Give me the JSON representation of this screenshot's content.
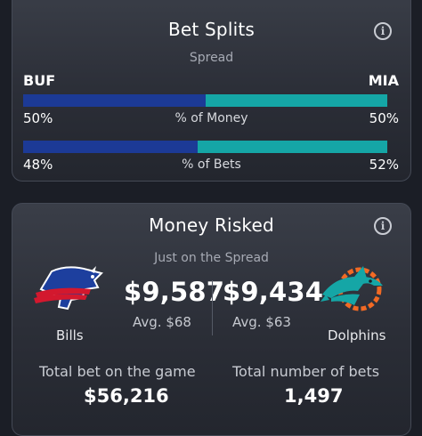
{
  "bet_splits": {
    "title": "Bet Splits",
    "market": "Spread",
    "away_abbr": "BUF",
    "home_abbr": "MIA",
    "money": {
      "label": "% of Money",
      "away_pct": "50%",
      "home_pct": "50%",
      "away_fraction": 0.5
    },
    "bets": {
      "label": "% of Bets",
      "away_pct": "48%",
      "home_pct": "52%",
      "away_fraction": 0.48
    }
  },
  "money_risked": {
    "title": "Money Risked",
    "subtitle": "Just on the Spread",
    "away": {
      "name": "Bills",
      "amount": "$9,587",
      "avg": "Avg. $68",
      "logo_icon": "bills-logo-icon"
    },
    "home": {
      "name": "Dolphins",
      "amount": "$9,434",
      "avg": "Avg. $63",
      "logo_icon": "dolphins-logo-icon"
    },
    "total_bet_label": "Total bet on the game",
    "total_bet_value": "$56,216",
    "total_count_label": "Total number of bets",
    "total_count_value": "1,497"
  },
  "colors": {
    "away_bar": "#1c3a96",
    "home_bar": "#15a6a6",
    "background": "#1b1e26"
  }
}
